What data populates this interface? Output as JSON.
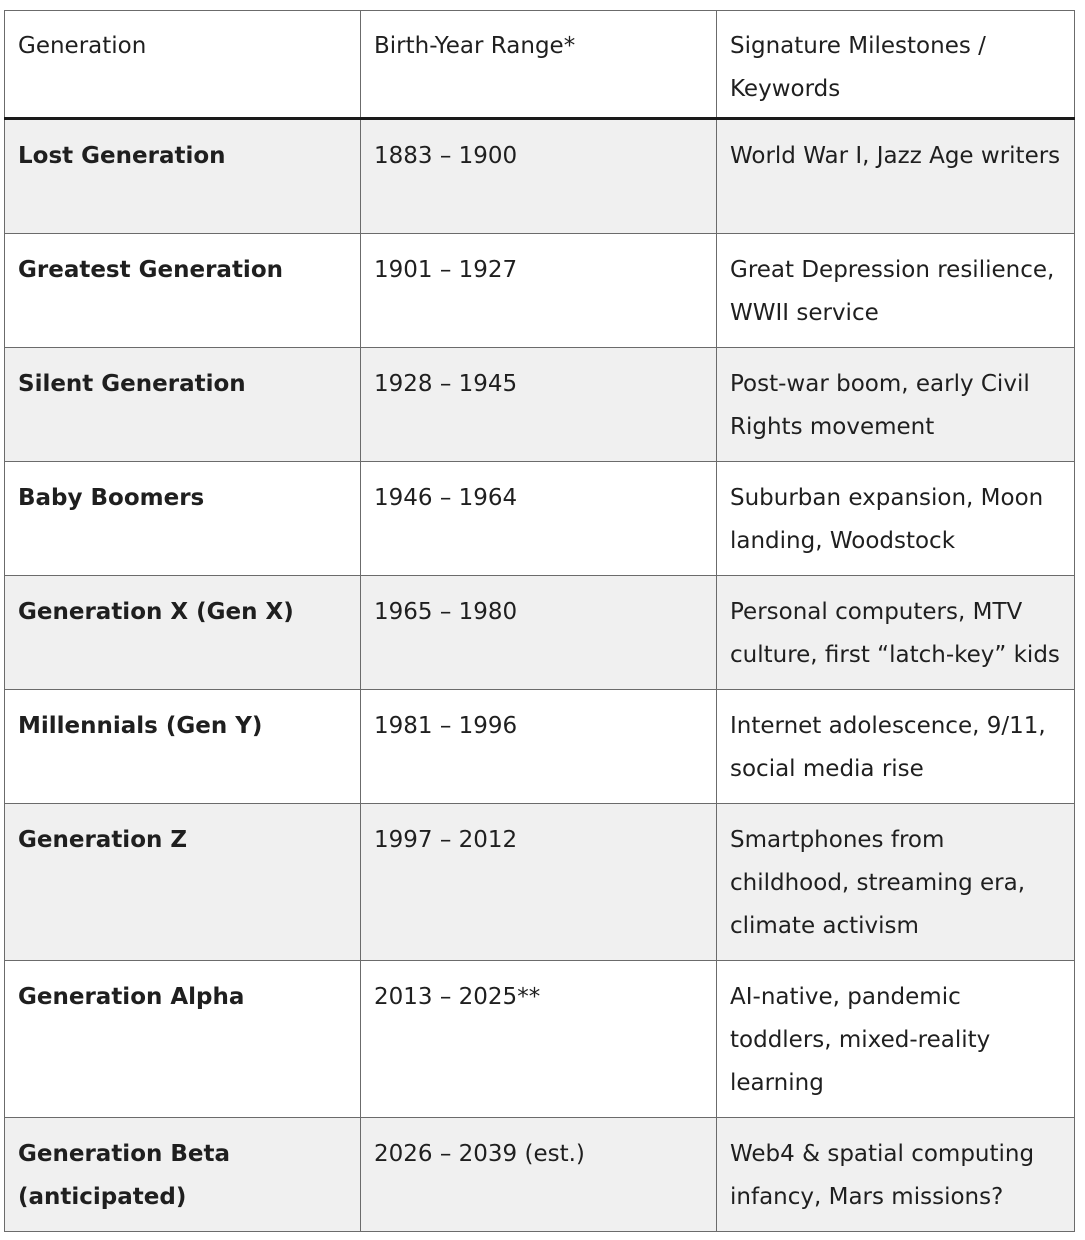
{
  "table": {
    "headers": [
      "Generation",
      "Birth-Year Range*",
      "Signature Milestones / Keywords"
    ],
    "rows": [
      {
        "generation": "Lost Generation",
        "range": "1883 – 1900",
        "milestones": "World War I, Jazz Age writers"
      },
      {
        "generation": "Greatest Generation",
        "range": "1901 – 1927",
        "milestones": "Great Depression resilience, WWII service"
      },
      {
        "generation": "Silent Generation",
        "range": "1928 – 1945",
        "milestones": "Post-war boom, early Civil Rights movement"
      },
      {
        "generation": "Baby Boomers",
        "range": "1946 – 1964",
        "milestones": "Suburban expansion, Moon landing, Woodstock"
      },
      {
        "generation": "Generation X (Gen X)",
        "range": "1965 – 1980",
        "milestones": "Personal computers, MTV culture, first “latch-key” kids"
      },
      {
        "generation": "Millennials (Gen Y)",
        "range": "1981 – 1996",
        "milestones": "Internet adolescence, 9/11, social media rise"
      },
      {
        "generation": "Generation Z",
        "range": "1997 – 2012",
        "milestones": "Smartphones from childhood, streaming era, climate activism"
      },
      {
        "generation": "Generation Alpha",
        "range": "2013 – 2025**",
        "milestones": "AI-native, pandemic toddlers, mixed-reality learning"
      },
      {
        "generation": "Generation Beta (anticipated)",
        "range": "2026 – 2039 (est.)",
        "milestones": "Web4 & spatial computing infancy, Mars missions?"
      }
    ]
  }
}
